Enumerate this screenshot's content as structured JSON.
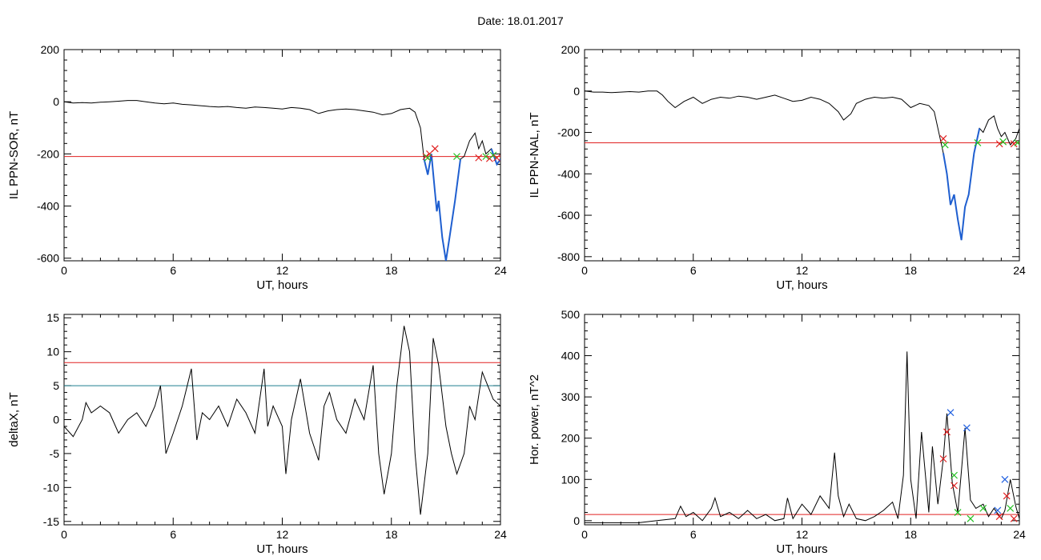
{
  "header": {
    "date_label": "Date:  18.01.2017"
  },
  "colors": {
    "line": "#000000",
    "threshold_red": "#e02020",
    "threshold_teal": "#1f7f8f",
    "highlight_blue": "#1f5fd0",
    "marker_red": "#e02020",
    "marker_green": "#20c020",
    "marker_blue": "#2060e0"
  },
  "chart_data": [
    {
      "id": "ppn-sor",
      "type": "line",
      "title": "",
      "xlabel": "UT, hours",
      "ylabel": "IL PPN-SOR, nT",
      "xlim": [
        0,
        24
      ],
      "ylim": [
        -610,
        200
      ],
      "xticks": [
        0,
        6,
        12,
        18,
        24
      ],
      "yticks": [
        200,
        0,
        -200,
        -400,
        -600
      ],
      "threshold": {
        "value": -210,
        "color": "#e02020"
      },
      "x": [
        0,
        0.5,
        1,
        1.5,
        2,
        2.5,
        3,
        3.5,
        4,
        4.5,
        5,
        5.5,
        6,
        6.5,
        7,
        7.5,
        8,
        8.5,
        9,
        9.5,
        10,
        10.5,
        11,
        11.5,
        12,
        12.5,
        13,
        13.5,
        14,
        14.5,
        15,
        15.5,
        16,
        16.5,
        17,
        17.5,
        18,
        18.5,
        19,
        19.3,
        19.6,
        19.8,
        20,
        20.2,
        20.4,
        20.5,
        20.6,
        20.8,
        21,
        21.2,
        21.5,
        21.8,
        22,
        22.3,
        22.6,
        22.8,
        23,
        23.2,
        23.5,
        23.8,
        24
      ],
      "y": [
        0,
        -5,
        -3,
        -5,
        -2,
        0,
        2,
        5,
        5,
        0,
        -5,
        -8,
        -5,
        -10,
        -12,
        -15,
        -18,
        -20,
        -18,
        -22,
        -25,
        -20,
        -22,
        -25,
        -28,
        -22,
        -25,
        -30,
        -45,
        -35,
        -30,
        -28,
        -30,
        -35,
        -40,
        -50,
        -45,
        -30,
        -25,
        -40,
        -100,
        -220,
        -280,
        -200,
        -350,
        -420,
        -380,
        -520,
        -610,
        -520,
        -380,
        -220,
        -210,
        -150,
        -120,
        -180,
        -150,
        -200,
        -180,
        -240,
        -220
      ],
      "highlight_ranges": [
        [
          19.8,
          21.8
        ],
        [
          23.3,
          24
        ]
      ],
      "markers": [
        {
          "x": 19.9,
          "y": -210,
          "color": "#e02020"
        },
        {
          "x": 20.1,
          "y": -200,
          "color": "#e02020"
        },
        {
          "x": 20.4,
          "y": -180,
          "color": "#e02020"
        },
        {
          "x": 20.0,
          "y": -215,
          "color": "#20c020"
        },
        {
          "x": 21.6,
          "y": -210,
          "color": "#20c020"
        },
        {
          "x": 22.8,
          "y": -215,
          "color": "#e02020"
        },
        {
          "x": 23.2,
          "y": -210,
          "color": "#20c020"
        },
        {
          "x": 23.4,
          "y": -218,
          "color": "#e02020"
        },
        {
          "x": 23.6,
          "y": -205,
          "color": "#20c020"
        },
        {
          "x": 23.8,
          "y": -215,
          "color": "#e02020"
        }
      ]
    },
    {
      "id": "ppn-nal",
      "type": "line",
      "title": "",
      "xlabel": "UT, hours",
      "ylabel": "IL PPN-NAL, nT",
      "xlim": [
        0,
        24
      ],
      "ylim": [
        -820,
        200
      ],
      "xticks": [
        0,
        6,
        12,
        18,
        24
      ],
      "yticks": [
        200,
        0,
        -200,
        -400,
        -600,
        -800
      ],
      "threshold": {
        "value": -250,
        "color": "#e02020"
      },
      "x": [
        0,
        0.5,
        1,
        1.5,
        2,
        2.5,
        3,
        3.5,
        4,
        4.3,
        4.6,
        5,
        5.5,
        6,
        6.5,
        7,
        7.5,
        8,
        8.5,
        9,
        9.5,
        10,
        10.5,
        11,
        11.5,
        12,
        12.5,
        13,
        13.5,
        14,
        14.3,
        14.7,
        15,
        15.5,
        16,
        16.5,
        17,
        17.5,
        18,
        18.5,
        19,
        19.3,
        19.6,
        19.8,
        20,
        20.2,
        20.4,
        20.6,
        20.8,
        21,
        21.2,
        21.5,
        21.8,
        22,
        22.3,
        22.6,
        22.8,
        23,
        23.2,
        23.5,
        23.8,
        24
      ],
      "y": [
        0,
        -5,
        -5,
        -8,
        -5,
        -3,
        -5,
        0,
        0,
        -20,
        -50,
        -80,
        -50,
        -30,
        -60,
        -40,
        -30,
        -35,
        -25,
        -30,
        -40,
        -30,
        -20,
        -35,
        -50,
        -45,
        -30,
        -40,
        -60,
        -100,
        -140,
        -110,
        -60,
        -40,
        -30,
        -35,
        -30,
        -40,
        -80,
        -60,
        -70,
        -100,
        -220,
        -300,
        -400,
        -550,
        -500,
        -620,
        -720,
        -560,
        -500,
        -300,
        -180,
        -200,
        -140,
        -120,
        -180,
        -220,
        -200,
        -260,
        -230,
        -180
      ],
      "highlight_ranges": [
        [
          19.8,
          21.8
        ]
      ],
      "markers": [
        {
          "x": 19.8,
          "y": -230,
          "color": "#e02020"
        },
        {
          "x": 19.9,
          "y": -260,
          "color": "#20c020"
        },
        {
          "x": 21.7,
          "y": -250,
          "color": "#20c020"
        },
        {
          "x": 22.9,
          "y": -255,
          "color": "#e02020"
        },
        {
          "x": 23.1,
          "y": -245,
          "color": "#20c020"
        },
        {
          "x": 23.7,
          "y": -255,
          "color": "#e02020"
        },
        {
          "x": 23.9,
          "y": -250,
          "color": "#20c020"
        }
      ]
    },
    {
      "id": "deltax",
      "type": "line",
      "title": "",
      "xlabel": "UT, hours",
      "ylabel": "deltaX, nT",
      "xlim": [
        0,
        24
      ],
      "ylim": [
        -15.5,
        15.5
      ],
      "xticks": [
        0,
        6,
        12,
        18,
        24
      ],
      "yticks": [
        15,
        10,
        5,
        0,
        -5,
        -10,
        -15
      ],
      "threshold_lines": [
        {
          "value": 8.4,
          "color": "#e02020"
        },
        {
          "value": 5.0,
          "color": "#1f7f8f"
        }
      ],
      "x": [
        0,
        0.5,
        1,
        1.2,
        1.5,
        2,
        2.5,
        3,
        3.5,
        4,
        4.5,
        5,
        5.3,
        5.6,
        6,
        6.5,
        7,
        7.3,
        7.6,
        8,
        8.5,
        9,
        9.5,
        10,
        10.5,
        11,
        11.2,
        11.5,
        12,
        12.2,
        12.5,
        13,
        13.5,
        14,
        14.3,
        14.6,
        15,
        15.5,
        16,
        16.5,
        17,
        17.3,
        17.6,
        18,
        18.3,
        18.7,
        19,
        19.3,
        19.6,
        20,
        20.3,
        20.6,
        21,
        21.3,
        21.6,
        22,
        22.3,
        22.6,
        23,
        23.3,
        23.6,
        24
      ],
      "y": [
        -1,
        -2.5,
        0,
        2.5,
        1,
        2,
        1,
        -2,
        0,
        1,
        -1,
        2,
        5,
        -5,
        -2,
        2,
        7.5,
        -3,
        1,
        0,
        2,
        -1,
        3,
        1,
        -2,
        7.5,
        -1,
        2,
        -1,
        -8,
        0,
        6,
        -2,
        -6,
        2,
        4,
        0,
        -2,
        3,
        0,
        8,
        -5,
        -11,
        -5,
        5,
        13.8,
        10,
        -5,
        -14,
        -5,
        12,
        8,
        -1,
        -5,
        -8,
        -5,
        2,
        0,
        7,
        5,
        3,
        2
      ]
    },
    {
      "id": "hor-power",
      "type": "line",
      "title": "",
      "xlabel": "UT, hours",
      "ylabel": "Hor. power, nT^2",
      "xlim": [
        0,
        24
      ],
      "ylim": [
        -10,
        500
      ],
      "xticks": [
        0,
        6,
        12,
        18,
        24
      ],
      "yticks": [
        500,
        400,
        300,
        200,
        100,
        0
      ],
      "threshold": {
        "value": 15,
        "color": "#e02020"
      },
      "x": [
        0,
        1,
        2,
        3,
        4,
        5,
        5.3,
        5.6,
        6,
        6.5,
        7,
        7.2,
        7.5,
        8,
        8.5,
        9,
        9.5,
        10,
        10.5,
        11,
        11.2,
        11.5,
        12,
        12.5,
        13,
        13.5,
        13.8,
        14,
        14.3,
        14.6,
        15,
        15.5,
        16,
        16.5,
        17,
        17.3,
        17.6,
        17.8,
        18,
        18.3,
        18.6,
        19,
        19.2,
        19.5,
        19.8,
        20,
        20.3,
        20.6,
        20.8,
        21,
        21.3,
        21.6,
        22,
        22.3,
        22.6,
        23,
        23.2,
        23.5,
        23.8,
        24
      ],
      "y": [
        -5,
        -5,
        -5,
        -5,
        0,
        5,
        35,
        10,
        20,
        0,
        30,
        55,
        10,
        20,
        5,
        25,
        5,
        15,
        0,
        5,
        55,
        5,
        40,
        15,
        60,
        30,
        165,
        60,
        10,
        40,
        5,
        0,
        10,
        25,
        45,
        5,
        110,
        410,
        100,
        5,
        215,
        20,
        180,
        40,
        150,
        260,
        90,
        20,
        120,
        225,
        50,
        30,
        40,
        10,
        30,
        5,
        25,
        100,
        35,
        5
      ],
      "markers": [
        {
          "x": 19.8,
          "y": 150,
          "color": "#e02020"
        },
        {
          "x": 20.0,
          "y": 215,
          "color": "#e02020"
        },
        {
          "x": 20.2,
          "y": 262,
          "color": "#2060e0"
        },
        {
          "x": 20.4,
          "y": 85,
          "color": "#e02020"
        },
        {
          "x": 20.4,
          "y": 110,
          "color": "#20c020"
        },
        {
          "x": 20.6,
          "y": 20,
          "color": "#20c020"
        },
        {
          "x": 21.1,
          "y": 225,
          "color": "#2060e0"
        },
        {
          "x": 21.3,
          "y": 5,
          "color": "#20c020"
        },
        {
          "x": 22.0,
          "y": 30,
          "color": "#20c020"
        },
        {
          "x": 22.8,
          "y": 25,
          "color": "#2060e0"
        },
        {
          "x": 22.9,
          "y": 10,
          "color": "#e02020"
        },
        {
          "x": 23.2,
          "y": 100,
          "color": "#2060e0"
        },
        {
          "x": 23.3,
          "y": 60,
          "color": "#e02020"
        },
        {
          "x": 23.5,
          "y": 30,
          "color": "#20c020"
        },
        {
          "x": 23.7,
          "y": 5,
          "color": "#e02020"
        }
      ]
    }
  ]
}
